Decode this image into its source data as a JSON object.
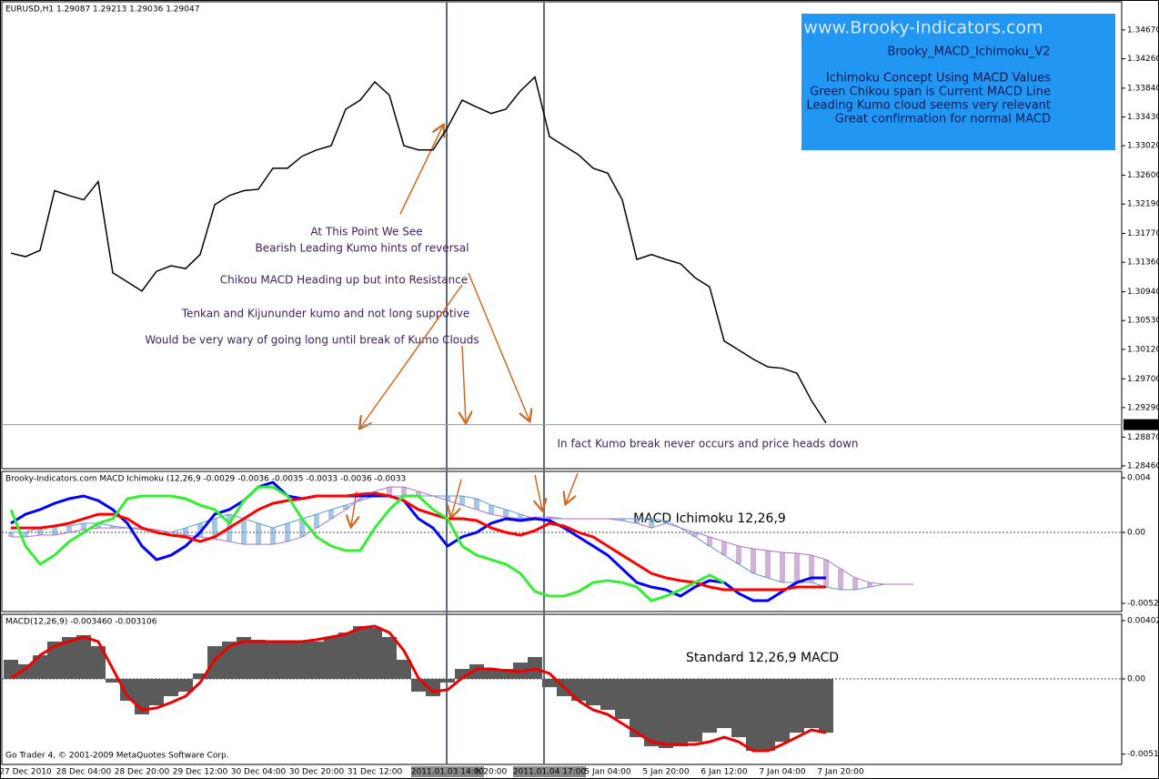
{
  "chart_data": [
    {
      "type": "line",
      "title": "EURUSD,H1  1.29087 1.29213 1.29036 1.29047",
      "categories": [
        null,
        "27 Dec 2010",
        null,
        null,
        null,
        "28 Dec 04:00",
        null,
        null,
        null,
        "28 Dec 20:00",
        null,
        null,
        null,
        "29 Dec 12:00",
        null,
        null,
        null,
        "30 Dec 04:00",
        null,
        null,
        null,
        "30 Dec 20:00",
        null,
        null,
        null,
        "31 Dec 12:00",
        null,
        null,
        null,
        null,
        "2011.01.03 14:00",
        null,
        null,
        "h 20:00",
        null,
        null,
        null,
        "2011.01.04 17:00",
        null,
        null,
        null,
        "5 Jan 04:00",
        null,
        null,
        null,
        "5 Jan 20:00",
        null,
        null,
        null,
        "6 Jan 12:00",
        null,
        null,
        null,
        "7 Jan 04:00",
        null,
        null,
        null,
        "7 Jan 20:00",
        null,
        null,
        null,
        null,
        null
      ],
      "series": [
        {
          "color": "#000000",
          "values": [
            1.3149,
            1.3144,
            1.3153,
            1.3238,
            1.3231,
            1.3225,
            1.3251,
            1.3121,
            1.3108,
            1.3095,
            1.3123,
            1.3131,
            1.3127,
            1.3147,
            1.3218,
            1.3231,
            1.3238,
            1.324,
            1.327,
            1.327,
            1.3287,
            1.3296,
            1.3302,
            1.3354,
            1.3367,
            1.3393,
            1.3374,
            1.3302,
            1.3296,
            1.3296,
            1.3328,
            1.3367,
            1.3357,
            1.3348,
            1.3354,
            1.338,
            1.34,
            1.3315,
            1.3302,
            1.3289,
            1.327,
            1.3263,
            1.3225,
            1.314,
            1.3147,
            1.314,
            1.3134,
            1.3114,
            1.3101,
            1.3024,
            1.3011,
            1.2998,
            1.2987,
            1.2985,
            1.2978,
            1.2939,
            1.2907,
            null,
            null,
            null,
            null,
            null,
            null
          ]
        }
      ],
      "last_price": {
        "value": 1.29047,
        "label": "1.29047"
      },
      "ylim": [
        1.2842,
        1.3507
      ],
      "yticks": [
        {
          "value": 1.3467,
          "label": "1.34670"
        },
        {
          "value": 1.3426,
          "label": "1.34260"
        },
        {
          "value": 1.3384,
          "label": "1.33840"
        },
        {
          "value": 1.3343,
          "label": "1.33430"
        },
        {
          "value": 1.3302,
          "label": "1.33020"
        },
        {
          "value": 1.326,
          "label": "1.32600"
        },
        {
          "value": 1.3219,
          "label": "1.32190"
        },
        {
          "value": 1.3177,
          "label": "1.31770"
        },
        {
          "value": 1.3136,
          "label": "1.31360"
        },
        {
          "value": 1.3094,
          "label": "1.30940"
        },
        {
          "value": 1.3053,
          "label": "1.30530"
        },
        {
          "value": 1.3012,
          "label": "1.30120"
        },
        {
          "value": 1.297,
          "label": "1.29700"
        },
        {
          "value": 1.2929,
          "label": "1.29290"
        },
        {
          "value": 1.2887,
          "label": "1.28870"
        },
        {
          "value": 1.2846,
          "label": "1.28460"
        }
      ],
      "annotations": [
        "At This Point We See",
        "Bearish Leading Kumo hints of reversal",
        "Chikou MACD Heading up but into Resistance",
        "Tenkan and Kijununder kumo and not long suppotive",
        "Would be very wary of going long until break of Kumo Clouds",
        "In fact Kumo break never occurs and price heads down"
      ],
      "info_box": {
        "site": "www.Brooky-Indicators.com",
        "name": "Brooky_MACD_Ichimoku_V2",
        "lines": [
          "Ichimoku Concept Using MACD Values",
          "Green Chikou span is Current MACD Line",
          "Leading Kumo cloud seems very relevant",
          "Great confirmation for normal MACD"
        ],
        "color": "#2196f3"
      }
    },
    {
      "type": "line",
      "title": "Brooky-Indicators.com MACD Ichimoku (12,26,9 -0.0029 -0.0036 -0.0035 -0.0033 -0.0036 -0.0033",
      "annotation": "MACD Ichimoku 12,26,9",
      "ylim": [
        -0.0058,
        0.00447
      ],
      "yticks": [
        0.004,
        {
          "value": 0,
          "label": "0.00"
        },
        -0.0052
      ],
      "cloud": {
        "up_color": "#5b9bd5",
        "down_color": "#b070c0",
        "span_a": [
          0,
          0,
          0.00033,
          0.00047,
          0.00047,
          0.00067,
          0.00067,
          0.00047,
          0.00033,
          0.0002,
          0,
          0,
          0.00033,
          0.00067,
          0.001,
          0.00133,
          0.001,
          0.00067,
          0.00033,
          0.00067,
          0.001,
          0.00133,
          0.00167,
          0.002,
          0.00233,
          0.00267,
          0.00267,
          0.00267,
          0.00267,
          0.00267,
          0.00267,
          0.00267,
          0.00247,
          0.002,
          0.00167,
          0.00133,
          0.001,
          0.001,
          0.001,
          0.001,
          0.001,
          0.001,
          0.001,
          0.001,
          0.001,
          0.00087,
          0.00033,
          -0.00033,
          -0.001,
          -0.00167,
          -0.00233,
          -0.003,
          -0.00333,
          -0.00367,
          -0.00367,
          -0.00367,
          -0.004,
          -0.0042,
          -0.0042,
          -0.004,
          -0.0038,
          -0.0038,
          -0.0038
        ],
        "span_b": [
          -0.00033,
          -0.00033,
          -0.0002,
          -0.0002,
          0,
          0.0002,
          0.00033,
          0.00033,
          0.00033,
          0.00033,
          0.0002,
          0,
          -0.0002,
          -0.00033,
          -0.00047,
          -0.00067,
          -0.00087,
          -0.00087,
          -0.00087,
          -0.00067,
          -0.00033,
          0.00033,
          0.001,
          0.00167,
          0.00247,
          0.003,
          0.00333,
          0.00333,
          0.003,
          0.00267,
          0.00233,
          0.002,
          0.00167,
          0.00133,
          0.00113,
          0.001,
          0.00113,
          0.00113,
          0.001,
          0.001,
          0.001,
          0.001,
          0.00087,
          0.00067,
          0.00033,
          0.00067,
          0.00033,
          0,
          -0.00033,
          -0.00067,
          -0.001,
          -0.0012,
          -0.00133,
          -0.00147,
          -0.00153,
          -0.00167,
          -0.002,
          -0.00267,
          -0.00333,
          -0.00367,
          -0.0038,
          -0.0038,
          -0.0038
        ]
      },
      "series": [
        {
          "color": "#0000ff",
          "values": [
            0.00067,
            0.00133,
            0.00167,
            0.00213,
            0.00247,
            0.00267,
            0.00233,
            0.00167,
            0.00067,
            -0.001,
            -0.002,
            -0.00167,
            -0.001,
            0,
            0.00133,
            0.00167,
            0.00233,
            0.00333,
            0.00367,
            0.00267,
            0.00247,
            0.00267,
            0.00267,
            0.00267,
            0.00267,
            0.00267,
            0.00267,
            0.00233,
            0.001,
            0.00033,
            -0.001,
            -0.00033,
            0,
            0.00067,
            0.001,
            0.00087,
            0.001,
            0.00087,
            0.00033,
            -0.00033,
            -0.001,
            -0.00167,
            -0.00267,
            -0.00367,
            -0.004,
            -0.0042,
            -0.00467,
            -0.004,
            -0.00353,
            -0.00367,
            -0.00447,
            -0.005,
            -0.005,
            -0.00433,
            -0.00367,
            -0.00333,
            -0.00333,
            null,
            null,
            null,
            null,
            null,
            null
          ]
        },
        {
          "color": "#ff0000",
          "values": [
            0.00033,
            0.00033,
            0.00033,
            0.00047,
            0.00067,
            0.001,
            0.00133,
            0.00133,
            0.001,
            0.00033,
            0,
            -0.0002,
            -0.00033,
            -0.00067,
            -0.00033,
            0.00033,
            0.001,
            0.00167,
            0.00213,
            0.00233,
            0.00247,
            0.00267,
            0.00267,
            0.00267,
            0.0028,
            0.00287,
            0.00267,
            0.00233,
            0.00167,
            0.00133,
            0.001,
            0.001,
            0.00087,
            0.00033,
            0,
            -0.0002,
            0.00013,
            0.00067,
            0.00047,
            0,
            -0.00033,
            -0.001,
            -0.00167,
            -0.00233,
            -0.003,
            -0.00333,
            -0.00353,
            -0.00367,
            -0.004,
            -0.0042,
            -0.0042,
            -0.0042,
            -0.0042,
            -0.0042,
            -0.004,
            -0.004,
            -0.004,
            null,
            null,
            null,
            null,
            null,
            null
          ]
        },
        {
          "color": "#33ee33",
          "values": [
            0.00167,
            -0.001,
            -0.00233,
            -0.00167,
            -0.00067,
            0,
            0.00067,
            0.001,
            0.00247,
            0.00267,
            0.00267,
            0.00267,
            0.00247,
            0.002,
            0.00167,
            0.00067,
            0.00233,
            0.00333,
            0.00333,
            0.00267,
            0.001,
            -0.00033,
            -0.001,
            -0.00133,
            -0.00133,
            0.00033,
            0.00167,
            0.00267,
            0.00267,
            0.00167,
            0.001,
            -0.001,
            -0.00167,
            -0.002,
            -0.00233,
            -0.003,
            -0.00433,
            -0.00467,
            -0.00467,
            -0.00433,
            -0.00367,
            -0.00353,
            -0.00367,
            -0.004,
            -0.005,
            -0.00467,
            -0.0042,
            -0.00367,
            -0.00313,
            -0.00367,
            null,
            null,
            null,
            null,
            null,
            null,
            null,
            null,
            null,
            null,
            null,
            null,
            null
          ]
        }
      ]
    },
    {
      "type": "bar",
      "title": "MACD(12,26,9) -0.003460 -0.003106",
      "annotation": "Standard 12,26,9 MACD",
      "footer": "Go Trader 4, © 2001-2009 MetaQuotes Software Corp.",
      "ylim": [
        -0.0059,
        0.00446
      ],
      "yticks": [
        0.00402,
        {
          "value": 0,
          "label": "0.00"
        },
        -0.00519
      ],
      "color": "#5a5a5a",
      "values": [
        0.00132,
        0.00101,
        0.00163,
        0.00258,
        0.00289,
        0.00302,
        0.00226,
        -0.00025,
        -0.00151,
        -0.00245,
        -0.00182,
        -0.00119,
        -0.00088,
        0.00038,
        0.00226,
        0.00258,
        0.00289,
        0.0027,
        0.00258,
        0.00258,
        0.00258,
        0.00258,
        0.00289,
        0.0032,
        0.00364,
        0.00352,
        0.00289,
        0.00132,
        -0.00088,
        -0.00119,
        -0.00025,
        0.00069,
        0.00101,
        0.00069,
        0.00069,
        0.00113,
        0.00151,
        -0.00057,
        -0.00119,
        -0.00151,
        -0.00182,
        -0.00214,
        -0.00276,
        -0.00402,
        -0.00465,
        -0.00477,
        -0.00465,
        -0.00434,
        -0.00371,
        -0.00339,
        -0.00402,
        -0.00496,
        -0.00496,
        -0.00434,
        -0.00371,
        -0.00339,
        -0.00371,
        null,
        null,
        null,
        null,
        null,
        null
      ],
      "series": [
        {
          "color": "#ee0000",
          "values": [
            6e-05,
            0.00069,
            0.00163,
            0.00226,
            0.00258,
            0.00289,
            0.00258,
            0.00069,
            -0.00119,
            -0.00214,
            -0.00201,
            -0.00163,
            -0.00119,
            -0.00025,
            0.00132,
            0.00226,
            0.00258,
            0.00258,
            0.00258,
            0.00258,
            0.00258,
            0.0027,
            0.00289,
            0.00308,
            0.00352,
            0.00364,
            0.0032,
            0.00195,
            6e-05,
            -0.00088,
            -0.00075,
            6e-05,
            0.00069,
            0.00069,
            0.00057,
            0.0005,
            0.00069,
            0.00038,
            -0.00057,
            -0.00151,
            -0.00214,
            -0.00245,
            -0.00308,
            -0.00371,
            -0.00434,
            -0.00452,
            -0.00452,
            -0.00452,
            -0.00434,
            -0.00402,
            -0.00434,
            -0.00496,
            -0.00496,
            -0.00452,
            -0.00402,
            -0.00352,
            -0.00371,
            null,
            null,
            null,
            null,
            null,
            null
          ]
        }
      ]
    }
  ]
}
